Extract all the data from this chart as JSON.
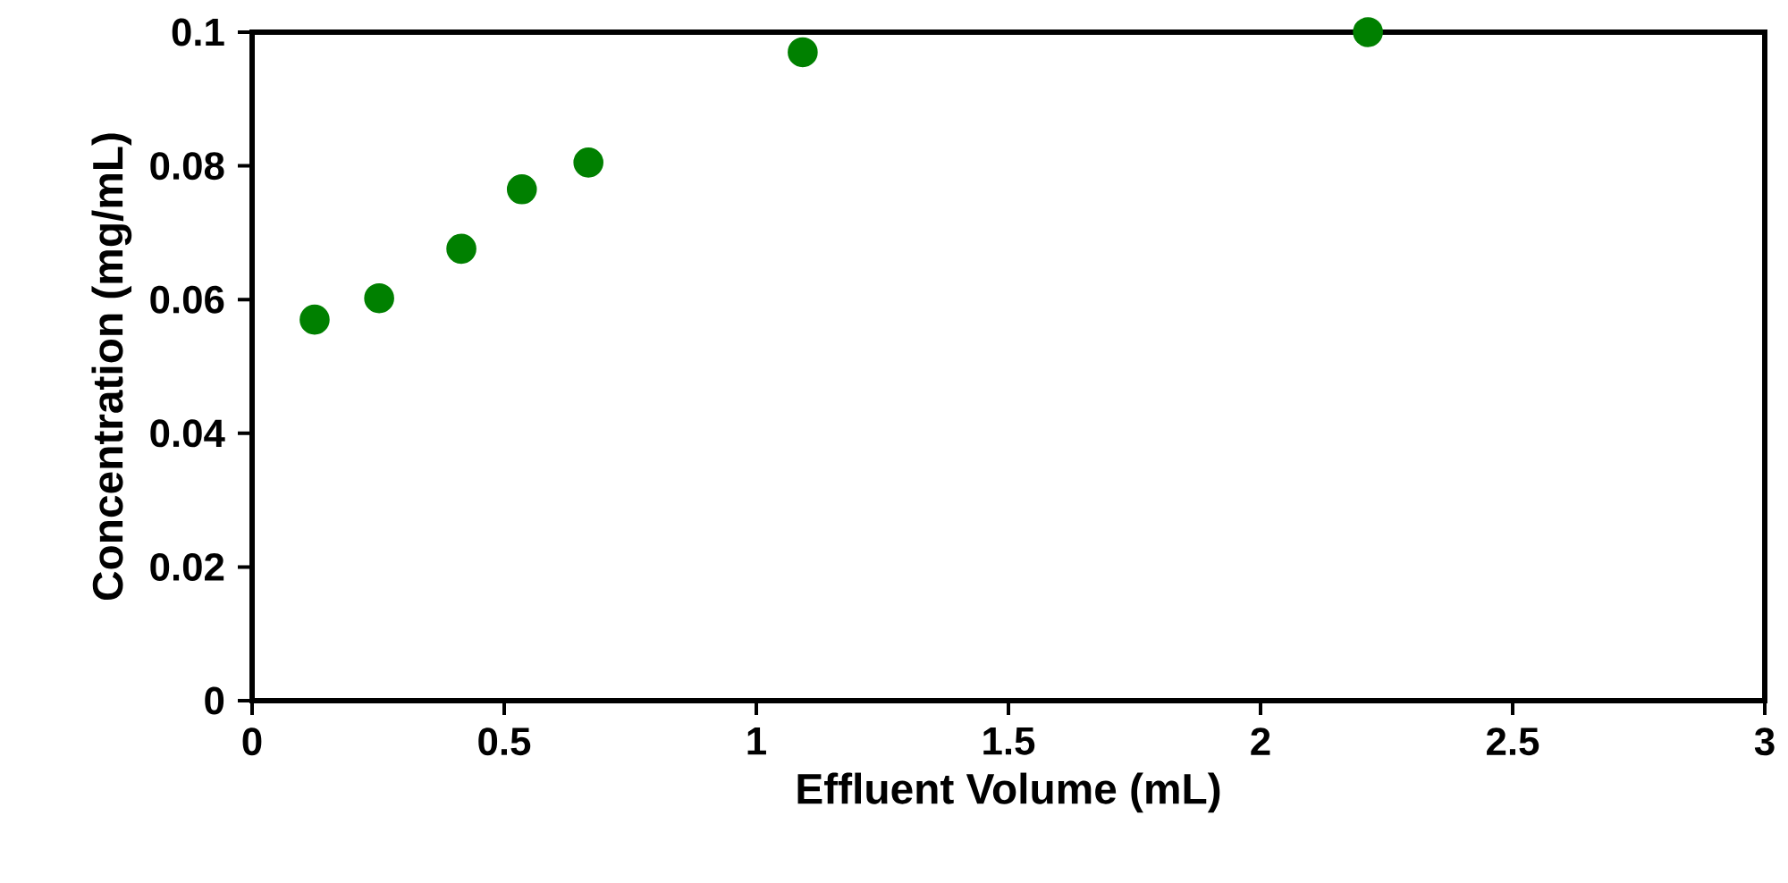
{
  "chart_data": {
    "type": "scatter",
    "xlabel": "Effluent Volume (mL)",
    "ylabel": "Concentration (mg/mL)",
    "x": [
      0.124,
      0.252,
      0.415,
      0.535,
      0.667,
      1.092,
      2.213
    ],
    "values": [
      0.057,
      0.0602,
      0.0676,
      0.0765,
      0.0805,
      0.097,
      0.1
    ],
    "color": "#008000",
    "marker": "circle",
    "xlim": [
      0,
      3
    ],
    "ylim": [
      0,
      0.1
    ],
    "xticks": [
      0,
      0.5,
      1,
      1.5,
      2,
      2.5,
      3
    ],
    "yticks": [
      0,
      0.02,
      0.04,
      0.06,
      0.08,
      0.1
    ],
    "grid": false
  }
}
